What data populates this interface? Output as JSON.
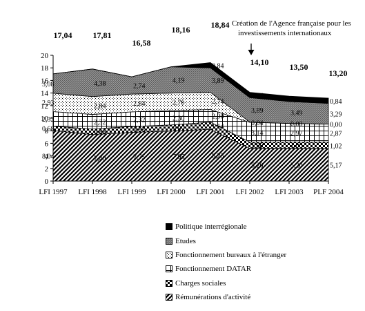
{
  "chart_data": {
    "type": "area",
    "categories": [
      "LFI 1997",
      "LFI 1998",
      "LFI 1999",
      "LFI 2000",
      "LFI 2001",
      "LFI 2002",
      "LFI 2003",
      "PLF 2004"
    ],
    "ylim": [
      0,
      20
    ],
    "yticks": [
      "0",
      "2",
      "4",
      "6",
      "8",
      "10",
      "12",
      "14",
      "16",
      "18",
      "20"
    ],
    "totals": [
      "17,04",
      "17,81",
      "16,58",
      "18,16",
      "18,84",
      "14,10",
      "13,50",
      "13,20"
    ],
    "annotation": "Création de l'Agence française pour les investissements internationaux",
    "series": [
      {
        "name": "Rémunérations d'activité",
        "values": [
          8.04,
          7.4,
          7.75,
          7.95,
          8.23,
          5.2,
          5.2,
          5.17
        ],
        "labels": [
          "8,04",
          "7,40",
          "7,75",
          "7,95",
          "8,23",
          "5,20",
          "5,20",
          "5,17"
        ],
        "pattern": "diag"
      },
      {
        "name": "Charges sociales",
        "values": [
          0.68,
          0.88,
          0.93,
          0.97,
          1.14,
          1.0,
          1.0,
          1.02
        ],
        "labels": [
          "0,68",
          "0,88",
          "0,93",
          "0,97",
          "1,14",
          "1,00",
          "1,00",
          "1,02"
        ],
        "pattern": "checker"
      },
      {
        "name": "Fonctionnement DATAR",
        "values": [
          2.32,
          2.32,
          2.32,
          2.3,
          2.0,
          3.14,
          2.97,
          2.87
        ],
        "labels": [
          "2,32",
          "2,32",
          "2,32",
          "2,30",
          "2,00",
          "3,14",
          "2,97",
          "2,87"
        ],
        "pattern": "grid"
      },
      {
        "name": "Fonctionnement bureaux à l'étranger",
        "values": [
          2.93,
          2.84,
          2.84,
          2.76,
          2.74,
          0.04,
          0.0,
          0.0
        ],
        "labels": [
          "2,93",
          "2,84",
          "2,84",
          "2,76",
          "2,74",
          "0,04",
          "0,00",
          "0,00"
        ],
        "pattern": "dots"
      },
      {
        "name": "Etudes",
        "values": [
          3.08,
          4.38,
          2.74,
          4.19,
          3.89,
          3.89,
          3.49,
          3.29
        ],
        "labels": [
          "3,08",
          "4,38",
          "2,74",
          "4,19",
          "3,89",
          "3,89",
          "3,49",
          "3,29"
        ],
        "pattern": "hatch"
      },
      {
        "name": "Politique interrégionale",
        "values": [
          0,
          0,
          0,
          0,
          0.84,
          0.84,
          0.84,
          0.84
        ],
        "labels": [
          "",
          "",
          "",
          "",
          "0,84",
          "0,84",
          "0,84",
          "0,84"
        ],
        "pattern": "solid"
      }
    ],
    "legend_order": [
      "Politique interrégionale",
      "Etudes",
      "Fonctionnement bureaux à l'étranger",
      "Fonctionnement DATAR",
      "Charges sociales",
      "Rémunérations d'activité"
    ]
  }
}
